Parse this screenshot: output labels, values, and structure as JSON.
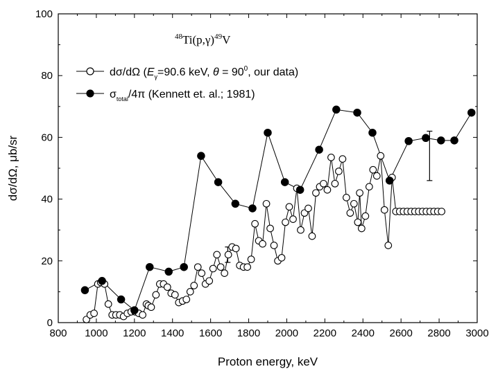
{
  "chart_data": {
    "type": "scatter",
    "title": "",
    "annotation": {
      "mass_a": "48",
      "core": "Ti(p,γ)",
      "mass_b": "49",
      "tail": "V"
    },
    "xlabel": "Proton energy, keV",
    "ylabel": "dσ/dΩ, μb/sr",
    "xlim": [
      800,
      3000
    ],
    "ylim": [
      0,
      100
    ],
    "xticks": [
      800,
      1000,
      1200,
      1400,
      1600,
      1800,
      2000,
      2200,
      2400,
      2600,
      2800,
      3000
    ],
    "yticks": [
      0,
      20,
      40,
      60,
      80,
      100
    ],
    "grid": false,
    "legend_position": "top-left",
    "legend": [
      {
        "marker": "open-circle",
        "prefix": "dσ/dΩ  (",
        "e_sym": "E",
        "e_sub": "γ",
        "mid": "=90.6 keV, ",
        "theta_sym": "θ",
        "eq": " = 90",
        "sup": "0",
        "suffix": ", our data)"
      },
      {
        "marker": "filled-circle",
        "sigma": "σ",
        "sub": "total",
        "rest": "/4π (Kennett et. al.; 1981)"
      }
    ],
    "series": [
      {
        "marker": "open-circle",
        "x": [
          948,
          968,
          988,
          1008,
          1023,
          1043,
          1063,
          1083,
          1103,
          1123,
          1143,
          1163,
          1183,
          1203,
          1223,
          1243,
          1263,
          1273,
          1288,
          1313,
          1333,
          1353,
          1373,
          1393,
          1413,
          1433,
          1453,
          1473,
          1493,
          1513,
          1533,
          1553,
          1573,
          1593,
          1613,
          1633,
          1653,
          1673,
          1693,
          1713,
          1733,
          1753,
          1773,
          1793,
          1813,
          1833,
          1853,
          1873,
          1893,
          1913,
          1933,
          1953,
          1973,
          1993,
          2013,
          2033,
          2053,
          2073,
          2093,
          2113,
          2133,
          2153,
          2173,
          2193,
          2213,
          2233,
          2253,
          2273,
          2293,
          2313,
          2333,
          2353,
          2373,
          2383,
          2393,
          2413,
          2433,
          2453,
          2473,
          2493,
          2513,
          2533,
          2553,
          2573,
          2593,
          2613,
          2633,
          2653,
          2673,
          2693,
          2713,
          2733,
          2753,
          2773,
          2793,
          2813
        ],
        "y": [
          1.0,
          2.5,
          3.0,
          12.5,
          13.0,
          12.5,
          6.0,
          2.5,
          2.5,
          2.5,
          2.0,
          3.0,
          3.5,
          3.5,
          3.0,
          2.5,
          6.0,
          5.5,
          5.0,
          9.0,
          12.5,
          12.5,
          11.5,
          9.5,
          9.0,
          6.5,
          7.0,
          7.5,
          10.0,
          12.0,
          18.0,
          16.0,
          12.5,
          13.5,
          17.5,
          22.0,
          18.0,
          16.0,
          22.0,
          24.5,
          24.0,
          18.5,
          18.0,
          18.0,
          20.5,
          32.0,
          26.5,
          25.5,
          38.5,
          30.5,
          25.0,
          20.0,
          21.0,
          32.5,
          37.5,
          33.5,
          43.5,
          30.0,
          35.5,
          37.0,
          28.0,
          42.0,
          44.0,
          45.0,
          43.0,
          53.5,
          45.0,
          49.0,
          53.0,
          40.5,
          35.5,
          38.5,
          32.5,
          42.0,
          30.5,
          34.5,
          44.0,
          49.5,
          47.5,
          54.0,
          36.5,
          25.0,
          47.0,
          36.0,
          36.0,
          36.0,
          36.0,
          36.0,
          36.0,
          36.0,
          36.0,
          36.0,
          36.0,
          36.0,
          36.0,
          36.0
        ]
      },
      {
        "marker": "filled-circle",
        "x": [
          940,
          1030,
          1130,
          1200,
          1280,
          1380,
          1460,
          1550,
          1640,
          1730,
          1820,
          1900,
          1990,
          2070,
          2170,
          2260,
          2370,
          2450,
          2540,
          2640,
          2730,
          2810,
          2880,
          2970
        ],
        "y": [
          10.5,
          13.5,
          7.5,
          4.0,
          18.0,
          16.5,
          18.0,
          54.0,
          45.5,
          38.5,
          37.0,
          61.5,
          45.5,
          43.0,
          56.0,
          69.0,
          68.0,
          61.5,
          46.0,
          58.8,
          59.8,
          59.0,
          59.0,
          68.0
        ]
      }
    ],
    "error_bars": [
      {
        "x": 1690,
        "low": 19.5,
        "high": 24.5
      },
      {
        "x": 2750,
        "low": 46.0,
        "high": 62.0
      }
    ]
  }
}
